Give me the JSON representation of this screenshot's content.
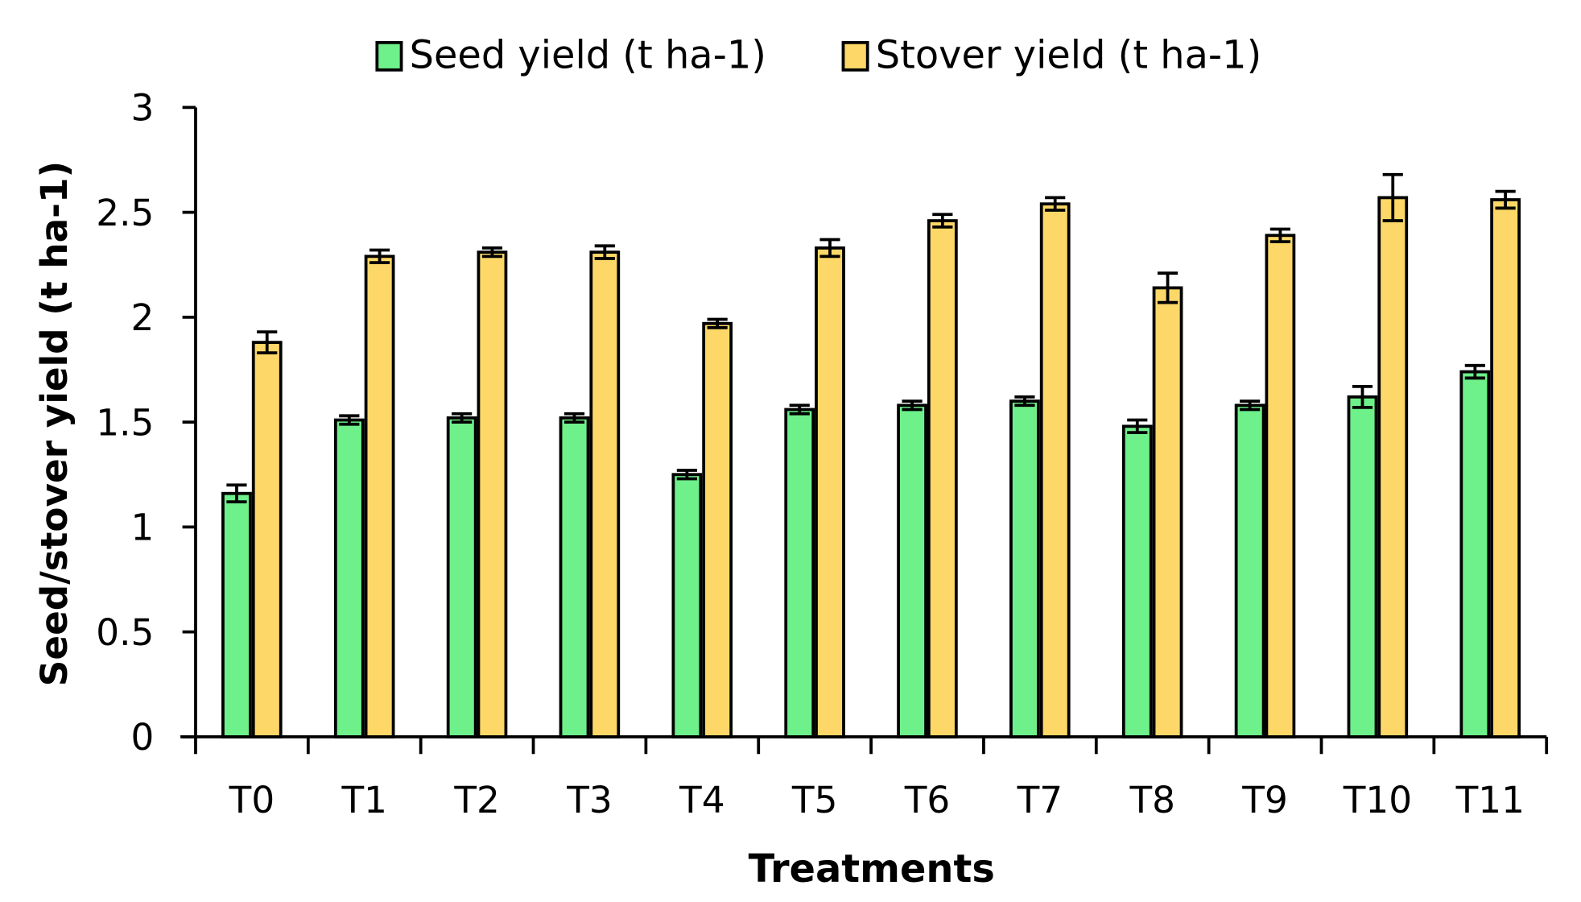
{
  "chart_data": {
    "type": "bar",
    "title": "",
    "xlabel": "Treatments",
    "ylabel": "Seed/stover yield (t ha-1)",
    "ylim": [
      0,
      3
    ],
    "yticks": [
      "0",
      "0.5",
      "1",
      "1.5",
      "2",
      "2.5",
      "3"
    ],
    "ytick_values": [
      0,
      0.5,
      1,
      1.5,
      2,
      2.5,
      3
    ],
    "categories": [
      "T0",
      "T1",
      "T2",
      "T3",
      "T4",
      "T5",
      "T6",
      "T7",
      "T8",
      "T9",
      "T10",
      "T11"
    ],
    "legend_position": "top-center",
    "grid": false,
    "series": [
      {
        "name": "Seed yield (t ha-1)",
        "color": "#6EF08A",
        "values": [
          1.16,
          1.51,
          1.52,
          1.52,
          1.25,
          1.56,
          1.58,
          1.6,
          1.48,
          1.58,
          1.62,
          1.74
        ],
        "errors": [
          0.04,
          0.02,
          0.02,
          0.02,
          0.02,
          0.02,
          0.02,
          0.02,
          0.03,
          0.02,
          0.05,
          0.03
        ]
      },
      {
        "name": "Stover yield (t ha-1)",
        "color": "#FDD868",
        "values": [
          1.88,
          2.29,
          2.31,
          2.31,
          1.97,
          2.33,
          2.46,
          2.54,
          2.14,
          2.39,
          2.57,
          2.56
        ],
        "errors": [
          0.05,
          0.03,
          0.02,
          0.03,
          0.02,
          0.04,
          0.03,
          0.03,
          0.07,
          0.03,
          0.11,
          0.04
        ]
      }
    ]
  }
}
